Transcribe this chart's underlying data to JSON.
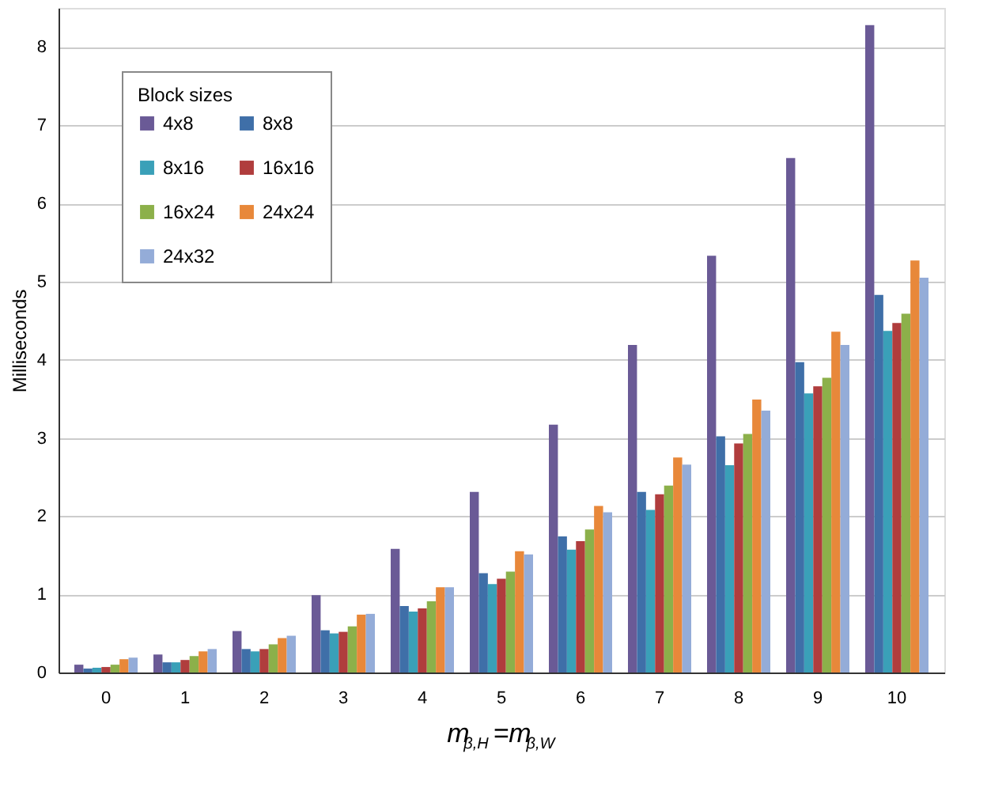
{
  "chart_data": {
    "type": "bar",
    "xlabel": "m$_{β,H}$=m$_{β,W}$",
    "ylabel": "Milliseconds",
    "legend_title": "Block sizes",
    "categories": [
      "0",
      "1",
      "2",
      "3",
      "4",
      "5",
      "6",
      "7",
      "8",
      "9",
      "10"
    ],
    "series": [
      {
        "name": "4x8",
        "color": "#6a5a96",
        "values": [
          0.1,
          0.23,
          0.53,
          0.99,
          1.58,
          2.31,
          3.17,
          4.19,
          5.33,
          6.58,
          8.28
        ]
      },
      {
        "name": "8x8",
        "color": "#3f6fa8",
        "values": [
          0.05,
          0.13,
          0.3,
          0.54,
          0.85,
          1.27,
          1.74,
          2.31,
          3.02,
          3.97,
          4.83
        ]
      },
      {
        "name": "8x16",
        "color": "#3aa0b8",
        "values": [
          0.06,
          0.13,
          0.27,
          0.5,
          0.78,
          1.13,
          1.57,
          2.08,
          2.65,
          3.57,
          4.37
        ]
      },
      {
        "name": "16x16",
        "color": "#b03d3d",
        "values": [
          0.07,
          0.16,
          0.3,
          0.52,
          0.82,
          1.2,
          1.68,
          2.28,
          2.93,
          3.66,
          4.47
        ]
      },
      {
        "name": "16x24",
        "color": "#8cb04a",
        "values": [
          0.1,
          0.21,
          0.36,
          0.59,
          0.91,
          1.29,
          1.83,
          2.39,
          3.05,
          3.77,
          4.59
        ]
      },
      {
        "name": "24x24",
        "color": "#e8883a",
        "values": [
          0.17,
          0.27,
          0.44,
          0.74,
          1.09,
          1.55,
          2.13,
          2.75,
          3.49,
          4.36,
          5.27
        ]
      },
      {
        "name": "24x32",
        "color": "#94acd8",
        "values": [
          0.19,
          0.3,
          0.47,
          0.75,
          1.09,
          1.51,
          2.05,
          2.66,
          3.35,
          4.19,
          5.05
        ]
      }
    ],
    "ylim": [
      0,
      8.5
    ],
    "yticks": [
      0,
      1,
      2,
      3,
      4,
      5,
      6,
      7,
      8
    ],
    "grid": "y",
    "legend": "top left"
  }
}
